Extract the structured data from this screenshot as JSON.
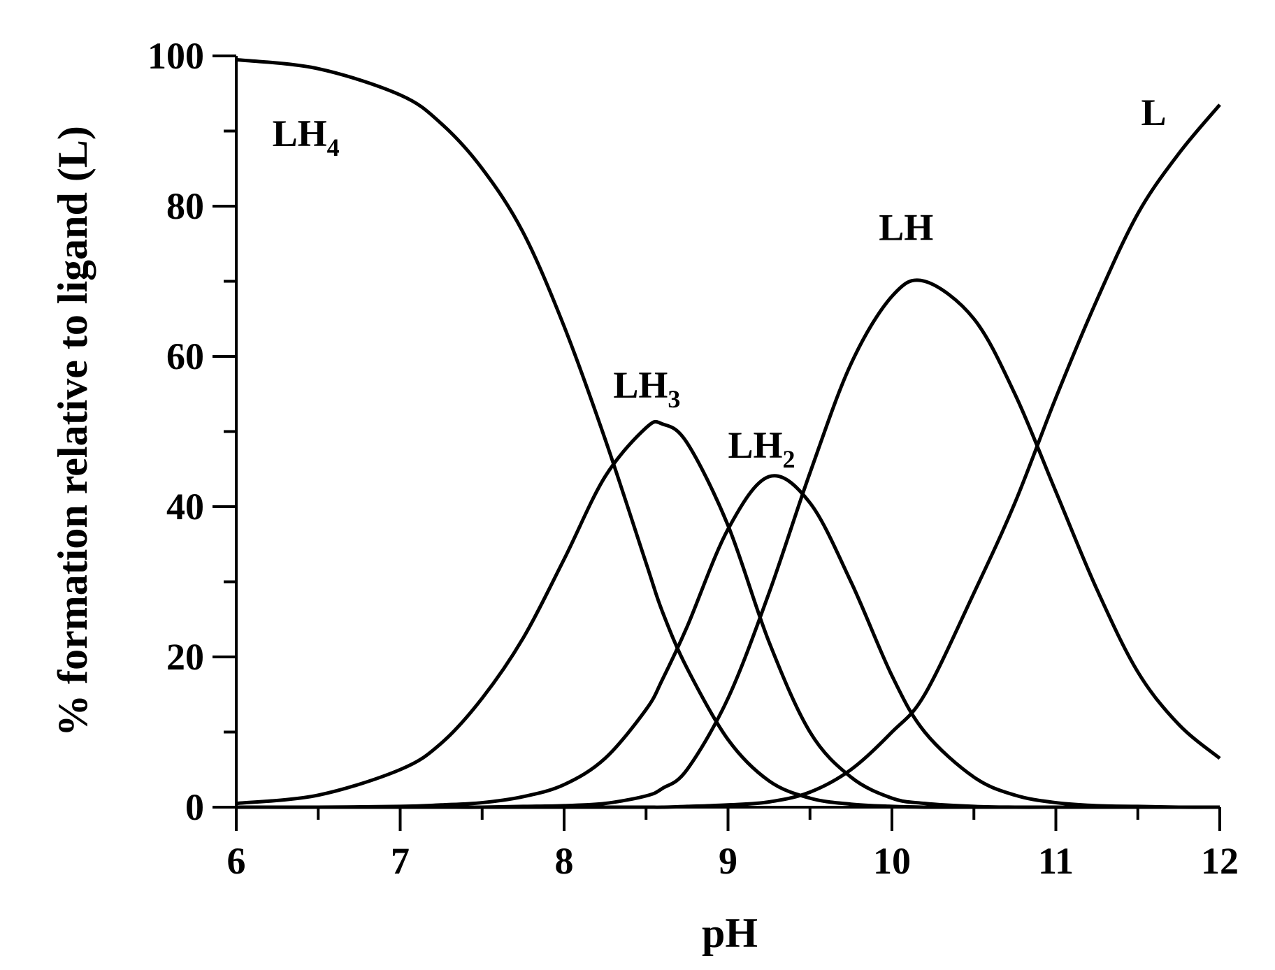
{
  "chart_data": {
    "type": "line",
    "xlabel": "pH",
    "ylabel": "% formation relative to ligand (L)",
    "xlim": [
      6,
      12
    ],
    "ylim": [
      0,
      100
    ],
    "x_ticks": [
      6,
      7,
      8,
      9,
      10,
      11,
      12
    ],
    "x_tick_labels": [
      "6",
      "7",
      "8",
      "9",
      "10",
      "11",
      "12"
    ],
    "x_minor_ticks": [
      6.5,
      7.5,
      8.5,
      9.5,
      10.5,
      11.5
    ],
    "y_ticks": [
      0,
      20,
      40,
      60,
      80,
      100
    ],
    "y_tick_labels": [
      "0",
      "20",
      "40",
      "60",
      "80",
      "100"
    ],
    "y_minor_ticks": [
      10,
      30,
      50,
      70,
      90
    ],
    "grid": false,
    "line_color": "#000000",
    "x": [
      6.0,
      6.5,
      7.0,
      7.25,
      7.5,
      7.75,
      8.0,
      8.25,
      8.5,
      8.6,
      8.75,
      9.0,
      9.25,
      9.5,
      9.75,
      10.0,
      10.2,
      10.5,
      10.75,
      11.0,
      11.25,
      11.5,
      11.75,
      12.0
    ],
    "series": [
      {
        "name": "LH4",
        "label_main": "LH",
        "label_sub": "4",
        "label_pos": [
          6.22,
          88
        ],
        "values": [
          99.5,
          98.3,
          94.8,
          91.0,
          85.0,
          76.5,
          64.0,
          49.0,
          32.5,
          26.0,
          18.5,
          9.0,
          3.5,
          1.2,
          0.4,
          0.1,
          0.0,
          0.0,
          0.0,
          0.0,
          0.0,
          0.0,
          0.0,
          0.0
        ]
      },
      {
        "name": "LH3",
        "label_main": "LH",
        "label_sub": "3",
        "label_pos": [
          8.3,
          54.5
        ],
        "values": [
          0.5,
          1.6,
          5.0,
          8.5,
          14.5,
          22.5,
          33.0,
          44.0,
          50.5,
          51.0,
          48.5,
          37.5,
          22.0,
          10.0,
          4.0,
          1.2,
          0.5,
          0.1,
          0.0,
          0.0,
          0.0,
          0.0,
          0.0,
          0.0
        ]
      },
      {
        "name": "LH2",
        "label_main": "LH",
        "label_sub": "2",
        "label_pos": [
          9.0,
          46.5
        ],
        "values": [
          0.0,
          0.0,
          0.1,
          0.3,
          0.6,
          1.4,
          3.0,
          6.5,
          13.0,
          17.0,
          24.0,
          37.0,
          44.0,
          40.5,
          30.0,
          17.5,
          10.0,
          4.0,
          1.6,
          0.6,
          0.2,
          0.1,
          0.0,
          0.0
        ]
      },
      {
        "name": "LH",
        "label_main": "LH",
        "label_sub": "",
        "label_pos": [
          9.92,
          75.5
        ],
        "values": [
          0.0,
          0.0,
          0.0,
          0.0,
          0.0,
          0.1,
          0.2,
          0.5,
          1.5,
          2.5,
          5.0,
          14.5,
          28.5,
          44.5,
          59.0,
          68.0,
          70.0,
          65.0,
          55.0,
          42.0,
          29.0,
          18.0,
          11.0,
          6.5
        ]
      },
      {
        "name": "L",
        "label_main": "L",
        "label_sub": "",
        "label_pos": [
          11.52,
          90.8
        ],
        "values": [
          0.0,
          0.0,
          0.0,
          0.0,
          0.0,
          0.0,
          0.0,
          0.0,
          0.0,
          0.0,
          0.1,
          0.3,
          0.7,
          2.0,
          5.0,
          10.0,
          15.0,
          28.5,
          40.5,
          54.5,
          67.5,
          79.0,
          87.0,
          93.5
        ]
      }
    ]
  }
}
